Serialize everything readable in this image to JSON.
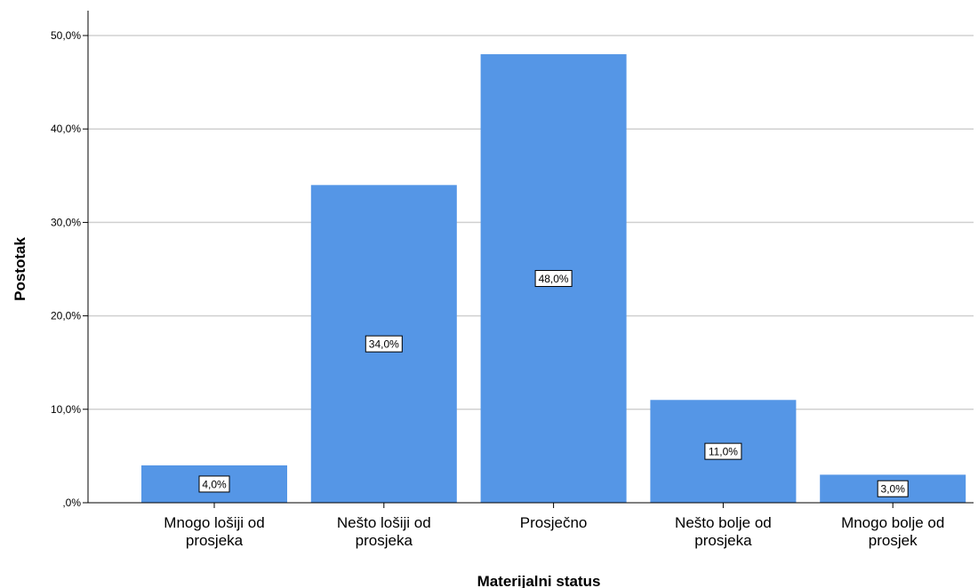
{
  "chart_data": {
    "type": "bar",
    "title": "",
    "xlabel": "Materijalni status",
    "ylabel": "Postotak",
    "categories": [
      [
        "Mnogo lošiji od",
        "prosjeka"
      ],
      [
        "Nešto lošiji od",
        "prosjeka"
      ],
      [
        "Prosječno"
      ],
      [
        "Nešto bolje od",
        "prosjeka"
      ],
      [
        "Mnogo bolje od",
        "prosjek"
      ]
    ],
    "values": [
      4.0,
      34.0,
      48.0,
      11.0,
      3.0
    ],
    "data_labels": [
      "4,0%",
      "34,0%",
      "48,0%",
      "11,0%",
      "3,0%"
    ],
    "y_ticks": [
      0,
      10,
      20,
      30,
      40,
      50
    ],
    "y_tick_labels": [
      ",0%",
      "10,0%",
      "20,0%",
      "30,0%",
      "40,0%",
      "50,0%"
    ],
    "ylim": [
      0,
      50
    ],
    "grid": true,
    "bar_color": "#5596e6",
    "grid_color": "#d0d0d0"
  }
}
